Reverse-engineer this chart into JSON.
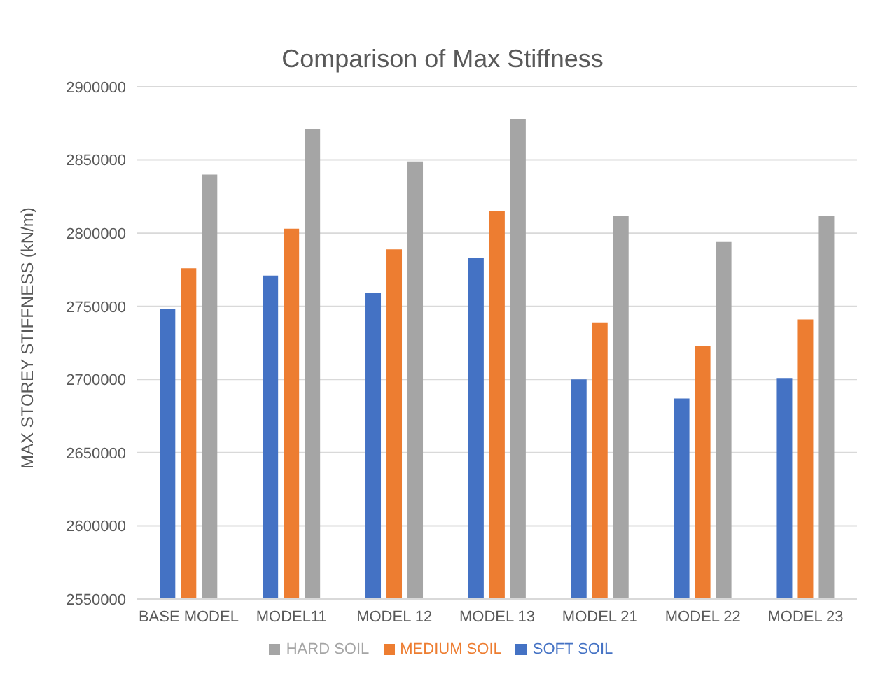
{
  "chart_data": {
    "type": "bar",
    "title": "Comparison of Max Stiffness",
    "ylabel": "MAX STOREY STIFFNESS (kN/m)",
    "categories": [
      "BASE MODEL",
      "MODEL11",
      "MODEL 12",
      "MODEL 13",
      "MODEL 21",
      "MODEL 22",
      "MODEL 23"
    ],
    "series": [
      {
        "name": "SOFT SOIL",
        "color": "#4472c4",
        "values": [
          2748000,
          2771000,
          2759000,
          2783000,
          2700000,
          2687000,
          2701000
        ]
      },
      {
        "name": "MEDIUM SOIL",
        "color": "#ed7d31",
        "values": [
          2776000,
          2803000,
          2789000,
          2815000,
          2739000,
          2723000,
          2741000
        ]
      },
      {
        "name": "HARD SOIL",
        "color": "#a5a5a5",
        "values": [
          2840000,
          2871000,
          2849000,
          2878000,
          2812000,
          2794000,
          2812000
        ]
      }
    ],
    "ylim": [
      2550000,
      2900000
    ],
    "yticks": [
      2550000,
      2600000,
      2650000,
      2700000,
      2750000,
      2800000,
      2850000,
      2900000
    ],
    "grid": "y",
    "legend": "bottom"
  }
}
